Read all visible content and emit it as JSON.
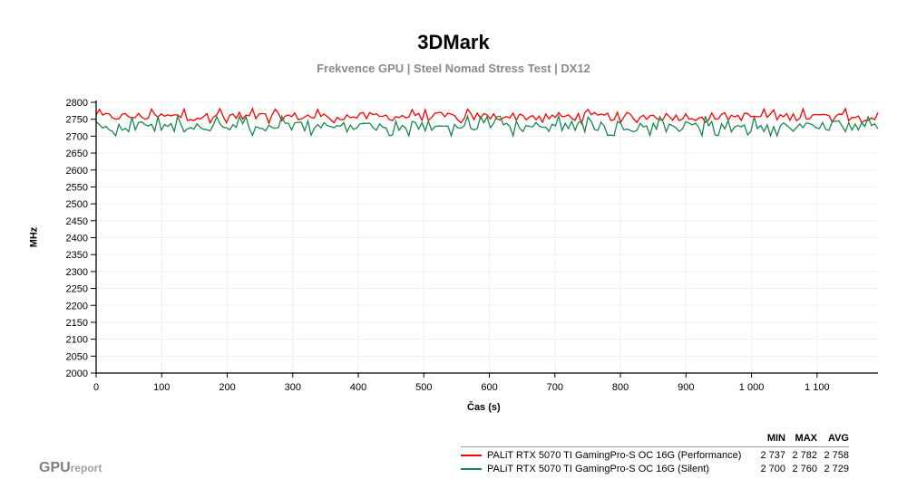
{
  "header": {
    "title": "3DMark",
    "subtitle": "Frekvence GPU | Steel Nomad Stress Test | DX12"
  },
  "branding": {
    "logo_main": "GPU",
    "logo_sub": "report"
  },
  "legend": {
    "columns": [
      "MIN",
      "MAX",
      "AVG"
    ],
    "rows": [
      {
        "name": "PALiT RTX 5070 TI GamingPro-S OC 16G (Performance)",
        "color": "#ff0000",
        "min": "2 737",
        "max": "2 782",
        "avg": "2 758"
      },
      {
        "name": "PALiT RTX 5070 TI GamingPro-S OC 16G (Silent)",
        "color": "#168a4e",
        "min": "2 700",
        "max": "2 760",
        "avg": "2 729"
      }
    ]
  },
  "chart_data": {
    "type": "line",
    "title": "3DMark",
    "subtitle": "Frekvence GPU | Steel Nomad Stress Test | DX12",
    "xlabel": "Čas (s)",
    "ylabel": "MHz",
    "xlim": [
      0,
      1193
    ],
    "ylim": [
      2000,
      2800
    ],
    "x_ticks": [
      0,
      100,
      200,
      300,
      400,
      500,
      600,
      700,
      800,
      900,
      1000,
      1100
    ],
    "x_tick_labels": [
      "0",
      "100",
      "200",
      "300",
      "400",
      "500",
      "600",
      "700",
      "800",
      "900",
      "1 000",
      "1 100"
    ],
    "y_ticks": [
      2000,
      2050,
      2100,
      2150,
      2200,
      2250,
      2300,
      2350,
      2400,
      2450,
      2500,
      2550,
      2600,
      2650,
      2700,
      2750,
      2800
    ],
    "grid": true,
    "legend_position": "bottom-right",
    "series": [
      {
        "name": "PALiT RTX 5070 TI GamingPro-S OC 16G (Performance)",
        "color": "#ff0000",
        "min": 2737,
        "max": 2782,
        "avg": 2758,
        "sample_count": 240
      },
      {
        "name": "PALiT RTX 5070 TI GamingPro-S OC 16G (Silent)",
        "color": "#168a4e",
        "min": 2700,
        "max": 2760,
        "avg": 2729,
        "sample_count": 240
      }
    ]
  }
}
